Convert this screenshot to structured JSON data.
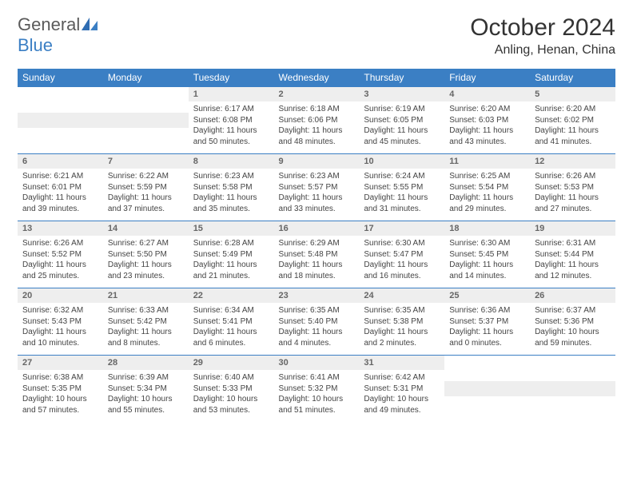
{
  "logo": {
    "text_part1": "General",
    "text_part2": "Blue",
    "accent_color": "#3b7fc4"
  },
  "header": {
    "month_title": "October 2024",
    "location": "Anling, Henan, China"
  },
  "calendar": {
    "header_bg": "#3b7fc4",
    "header_fg": "#ffffff",
    "daynum_bg": "#eeeeee",
    "divider_color": "#3b7fc4",
    "day_names": [
      "Sunday",
      "Monday",
      "Tuesday",
      "Wednesday",
      "Thursday",
      "Friday",
      "Saturday"
    ],
    "weeks": [
      [
        null,
        null,
        {
          "num": "1",
          "sunrise": "Sunrise: 6:17 AM",
          "sunset": "Sunset: 6:08 PM",
          "daylight": "Daylight: 11 hours and 50 minutes."
        },
        {
          "num": "2",
          "sunrise": "Sunrise: 6:18 AM",
          "sunset": "Sunset: 6:06 PM",
          "daylight": "Daylight: 11 hours and 48 minutes."
        },
        {
          "num": "3",
          "sunrise": "Sunrise: 6:19 AM",
          "sunset": "Sunset: 6:05 PM",
          "daylight": "Daylight: 11 hours and 45 minutes."
        },
        {
          "num": "4",
          "sunrise": "Sunrise: 6:20 AM",
          "sunset": "Sunset: 6:03 PM",
          "daylight": "Daylight: 11 hours and 43 minutes."
        },
        {
          "num": "5",
          "sunrise": "Sunrise: 6:20 AM",
          "sunset": "Sunset: 6:02 PM",
          "daylight": "Daylight: 11 hours and 41 minutes."
        }
      ],
      [
        {
          "num": "6",
          "sunrise": "Sunrise: 6:21 AM",
          "sunset": "Sunset: 6:01 PM",
          "daylight": "Daylight: 11 hours and 39 minutes."
        },
        {
          "num": "7",
          "sunrise": "Sunrise: 6:22 AM",
          "sunset": "Sunset: 5:59 PM",
          "daylight": "Daylight: 11 hours and 37 minutes."
        },
        {
          "num": "8",
          "sunrise": "Sunrise: 6:23 AM",
          "sunset": "Sunset: 5:58 PM",
          "daylight": "Daylight: 11 hours and 35 minutes."
        },
        {
          "num": "9",
          "sunrise": "Sunrise: 6:23 AM",
          "sunset": "Sunset: 5:57 PM",
          "daylight": "Daylight: 11 hours and 33 minutes."
        },
        {
          "num": "10",
          "sunrise": "Sunrise: 6:24 AM",
          "sunset": "Sunset: 5:55 PM",
          "daylight": "Daylight: 11 hours and 31 minutes."
        },
        {
          "num": "11",
          "sunrise": "Sunrise: 6:25 AM",
          "sunset": "Sunset: 5:54 PM",
          "daylight": "Daylight: 11 hours and 29 minutes."
        },
        {
          "num": "12",
          "sunrise": "Sunrise: 6:26 AM",
          "sunset": "Sunset: 5:53 PM",
          "daylight": "Daylight: 11 hours and 27 minutes."
        }
      ],
      [
        {
          "num": "13",
          "sunrise": "Sunrise: 6:26 AM",
          "sunset": "Sunset: 5:52 PM",
          "daylight": "Daylight: 11 hours and 25 minutes."
        },
        {
          "num": "14",
          "sunrise": "Sunrise: 6:27 AM",
          "sunset": "Sunset: 5:50 PM",
          "daylight": "Daylight: 11 hours and 23 minutes."
        },
        {
          "num": "15",
          "sunrise": "Sunrise: 6:28 AM",
          "sunset": "Sunset: 5:49 PM",
          "daylight": "Daylight: 11 hours and 21 minutes."
        },
        {
          "num": "16",
          "sunrise": "Sunrise: 6:29 AM",
          "sunset": "Sunset: 5:48 PM",
          "daylight": "Daylight: 11 hours and 18 minutes."
        },
        {
          "num": "17",
          "sunrise": "Sunrise: 6:30 AM",
          "sunset": "Sunset: 5:47 PM",
          "daylight": "Daylight: 11 hours and 16 minutes."
        },
        {
          "num": "18",
          "sunrise": "Sunrise: 6:30 AM",
          "sunset": "Sunset: 5:45 PM",
          "daylight": "Daylight: 11 hours and 14 minutes."
        },
        {
          "num": "19",
          "sunrise": "Sunrise: 6:31 AM",
          "sunset": "Sunset: 5:44 PM",
          "daylight": "Daylight: 11 hours and 12 minutes."
        }
      ],
      [
        {
          "num": "20",
          "sunrise": "Sunrise: 6:32 AM",
          "sunset": "Sunset: 5:43 PM",
          "daylight": "Daylight: 11 hours and 10 minutes."
        },
        {
          "num": "21",
          "sunrise": "Sunrise: 6:33 AM",
          "sunset": "Sunset: 5:42 PM",
          "daylight": "Daylight: 11 hours and 8 minutes."
        },
        {
          "num": "22",
          "sunrise": "Sunrise: 6:34 AM",
          "sunset": "Sunset: 5:41 PM",
          "daylight": "Daylight: 11 hours and 6 minutes."
        },
        {
          "num": "23",
          "sunrise": "Sunrise: 6:35 AM",
          "sunset": "Sunset: 5:40 PM",
          "daylight": "Daylight: 11 hours and 4 minutes."
        },
        {
          "num": "24",
          "sunrise": "Sunrise: 6:35 AM",
          "sunset": "Sunset: 5:38 PM",
          "daylight": "Daylight: 11 hours and 2 minutes."
        },
        {
          "num": "25",
          "sunrise": "Sunrise: 6:36 AM",
          "sunset": "Sunset: 5:37 PM",
          "daylight": "Daylight: 11 hours and 0 minutes."
        },
        {
          "num": "26",
          "sunrise": "Sunrise: 6:37 AM",
          "sunset": "Sunset: 5:36 PM",
          "daylight": "Daylight: 10 hours and 59 minutes."
        }
      ],
      [
        {
          "num": "27",
          "sunrise": "Sunrise: 6:38 AM",
          "sunset": "Sunset: 5:35 PM",
          "daylight": "Daylight: 10 hours and 57 minutes."
        },
        {
          "num": "28",
          "sunrise": "Sunrise: 6:39 AM",
          "sunset": "Sunset: 5:34 PM",
          "daylight": "Daylight: 10 hours and 55 minutes."
        },
        {
          "num": "29",
          "sunrise": "Sunrise: 6:40 AM",
          "sunset": "Sunset: 5:33 PM",
          "daylight": "Daylight: 10 hours and 53 minutes."
        },
        {
          "num": "30",
          "sunrise": "Sunrise: 6:41 AM",
          "sunset": "Sunset: 5:32 PM",
          "daylight": "Daylight: 10 hours and 51 minutes."
        },
        {
          "num": "31",
          "sunrise": "Sunrise: 6:42 AM",
          "sunset": "Sunset: 5:31 PM",
          "daylight": "Daylight: 10 hours and 49 minutes."
        },
        null,
        null
      ]
    ]
  }
}
